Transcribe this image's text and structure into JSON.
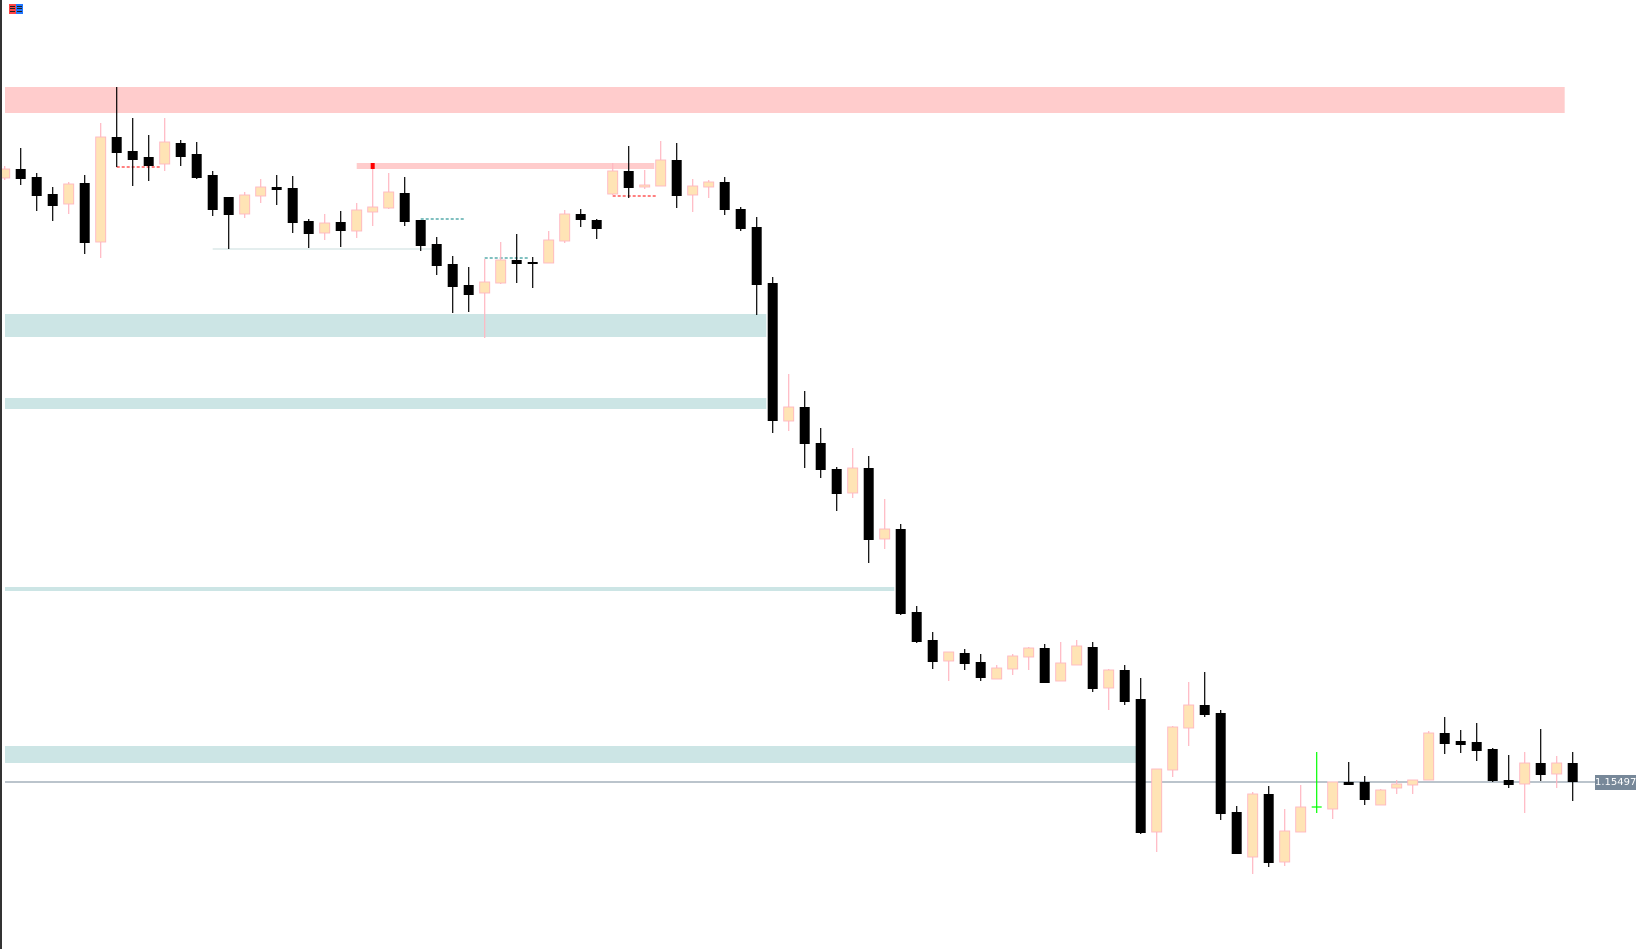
{
  "colors": {
    "bull_fill": "#FFE4B5",
    "bull_border": "#FFB6C1",
    "bear_fill": "#000000",
    "bear_wick": "#000000",
    "supply_zone": "#FFCCCC",
    "demand_zone": "#CCE5E5",
    "price_line": "#778899",
    "highlight": "#00FF00",
    "marker": "#FF0000",
    "dash_red": "#FF0000",
    "dash_teal": "#008080",
    "thin_line": "#C8DEDE",
    "icon_left": "#FF4444",
    "icon_right": "#2277FF"
  },
  "app_icon": "chart-window-icon",
  "chart_data": {
    "type": "candlestick",
    "ylim": [
      1.15163,
      1.17061
    ],
    "grid": false,
    "current_price": "1.15497",
    "candles": [
      [
        1.16705,
        1.16729,
        1.16701,
        1.16723
      ],
      [
        1.16723,
        1.16765,
        1.16691,
        1.16703
      ],
      [
        1.16707,
        1.16715,
        1.16639,
        1.16669
      ],
      [
        1.16673,
        1.16687,
        1.16619,
        1.16649
      ],
      [
        1.16653,
        1.16697,
        1.16633,
        1.16693
      ],
      [
        1.16695,
        1.16711,
        1.16553,
        1.16575
      ],
      [
        1.16577,
        1.16815,
        1.16545,
        1.16787
      ],
      [
        1.16787,
        1.16887,
        1.16727,
        1.16755
      ],
      [
        1.16759,
        1.16825,
        1.16689,
        1.16741
      ],
      [
        1.16747,
        1.16791,
        1.16699,
        1.16729
      ],
      [
        1.16733,
        1.16825,
        1.16719,
        1.16777
      ],
      [
        1.16775,
        1.16781,
        1.16729,
        1.16747
      ],
      [
        1.16753,
        1.16777,
        1.16703,
        1.16705
      ],
      [
        1.16711,
        1.16719,
        1.16629,
        1.16641
      ],
      [
        1.16667,
        1.16667,
        1.16563,
        1.16631
      ],
      [
        1.16633,
        1.16677,
        1.16625,
        1.16671
      ],
      [
        1.16669,
        1.16703,
        1.16655,
        1.16687
      ],
      [
        1.16687,
        1.16711,
        1.16651,
        1.16681
      ],
      [
        1.16685,
        1.16709,
        1.16595,
        1.16615
      ],
      [
        1.16619,
        1.16623,
        1.16565,
        1.16593
      ],
      [
        1.16595,
        1.16633,
        1.16581,
        1.16615
      ],
      [
        1.16617,
        1.16639,
        1.16567,
        1.16599
      ],
      [
        1.16599,
        1.16655,
        1.16585,
        1.16641
      ],
      [
        1.16637,
        1.16729,
        1.16609,
        1.16647
      ],
      [
        1.16645,
        1.16715,
        1.16643,
        1.16677
      ],
      [
        1.16675,
        1.16707,
        1.16609,
        1.16617
      ],
      [
        1.16621,
        1.16621,
        1.16559,
        1.16569
      ],
      [
        1.16573,
        1.16587,
        1.16511,
        1.16529
      ],
      [
        1.16533,
        1.16549,
        1.16435,
        1.16487
      ],
      [
        1.16491,
        1.16527,
        1.16437,
        1.16471
      ],
      [
        1.16475,
        1.16543,
        1.16385,
        1.16497
      ],
      [
        1.16495,
        1.16577,
        1.16493,
        1.16541
      ],
      [
        1.16541,
        1.16593,
        1.16495,
        1.16533
      ],
      [
        1.16537,
        1.16547,
        1.16485,
        1.16533
      ],
      [
        1.16535,
        1.16599,
        1.16535,
        1.16581
      ],
      [
        1.16579,
        1.16641,
        1.16575,
        1.16633
      ],
      [
        1.16633,
        1.16643,
        1.16607,
        1.16621
      ],
      [
        1.16621,
        1.16623,
        1.16583,
        1.16603
      ],
      [
        1.16673,
        1.16735,
        1.16671,
        1.16719
      ],
      [
        1.16719,
        1.16769,
        1.16665,
        1.16685
      ],
      [
        1.16687,
        1.16721,
        1.16683,
        1.16691
      ],
      [
        1.16689,
        1.16779,
        1.16689,
        1.16741
      ],
      [
        1.16741,
        1.16775,
        1.16645,
        1.16669
      ],
      [
        1.16671,
        1.16703,
        1.16637,
        1.16689
      ],
      [
        1.16687,
        1.16701,
        1.16665,
        1.16697
      ],
      [
        1.16697,
        1.16707,
        1.16631,
        1.16641
      ],
      [
        1.16643,
        1.16647,
        1.16599,
        1.16603
      ],
      [
        1.16607,
        1.16627,
        1.16431,
        1.16491
      ],
      [
        1.16495,
        1.16507,
        1.16195,
        1.16219
      ],
      [
        1.16219,
        1.16313,
        1.16199,
        1.16247
      ],
      [
        1.16247,
        1.16279,
        1.16125,
        1.16173
      ],
      [
        1.16175,
        1.16205,
        1.16105,
        1.16121
      ],
      [
        1.16123,
        1.16127,
        1.16039,
        1.16073
      ],
      [
        1.16075,
        1.16165,
        1.16065,
        1.16125
      ],
      [
        1.16125,
        1.16149,
        1.15935,
        1.15981
      ],
      [
        1.15983,
        1.16063,
        1.15963,
        1.16003
      ],
      [
        1.16003,
        1.16013,
        1.15831,
        1.15833
      ],
      [
        1.15837,
        1.15849,
        1.15775,
        1.15777
      ],
      [
        1.15781,
        1.15797,
        1.15723,
        1.15737
      ],
      [
        1.15739,
        1.15757,
        1.15699,
        1.15757
      ],
      [
        1.15755,
        1.15763,
        1.15721,
        1.15733
      ],
      [
        1.15737,
        1.15753,
        1.15699,
        1.15705
      ],
      [
        1.15703,
        1.15731,
        1.15703,
        1.15725
      ],
      [
        1.15723,
        1.15753,
        1.15711,
        1.15749
      ],
      [
        1.15747,
        1.15767,
        1.15721,
        1.15765
      ],
      [
        1.15765,
        1.15773,
        1.15695,
        1.15695
      ],
      [
        1.15699,
        1.15777,
        1.15699,
        1.15735
      ],
      [
        1.15731,
        1.15781,
        1.15731,
        1.15769
      ],
      [
        1.15767,
        1.15777,
        1.15677,
        1.15683
      ],
      [
        1.15685,
        1.15723,
        1.15641,
        1.15721
      ],
      [
        1.15721,
        1.15731,
        1.15651,
        1.15657
      ],
      [
        1.15663,
        1.15705,
        1.15393,
        1.15395
      ],
      [
        1.15397,
        1.15523,
        1.15357,
        1.15523
      ],
      [
        1.15521,
        1.15609,
        1.15507,
        1.15607
      ],
      [
        1.15605,
        1.15697,
        1.15569,
        1.15651
      ],
      [
        1.15651,
        1.15717,
        1.15627,
        1.15631
      ],
      [
        1.15635,
        1.15641,
        1.15421,
        1.15433
      ],
      [
        1.15437,
        1.15449,
        1.15353,
        1.15353
      ],
      [
        1.15347,
        1.15477,
        1.15313,
        1.15473
      ],
      [
        1.15473,
        1.15489,
        1.15327,
        1.15335
      ],
      [
        1.15337,
        1.15443,
        1.15329,
        1.15399
      ],
      [
        1.15397,
        1.15491,
        1.15397,
        1.15447
      ],
      [
        1.15447,
        1.15557,
        1.15435,
        1.15447
      ],
      [
        1.15443,
        1.15497,
        1.15423,
        1.15497
      ],
      [
        1.15497,
        1.15537,
        1.15491,
        1.15491
      ],
      [
        1.15497,
        1.15509,
        1.15451,
        1.15461
      ],
      [
        1.15451,
        1.15483,
        1.15451,
        1.15481
      ],
      [
        1.15485,
        1.15501,
        1.15473,
        1.15493
      ],
      [
        1.15491,
        1.15501,
        1.15473,
        1.15501
      ],
      [
        1.15501,
        1.15599,
        1.15501,
        1.15595
      ],
      [
        1.15595,
        1.15627,
        1.15553,
        1.15573
      ],
      [
        1.15579,
        1.15601,
        1.15555,
        1.15571
      ],
      [
        1.15577,
        1.15615,
        1.15539,
        1.15559
      ],
      [
        1.15563,
        1.15565,
        1.15497,
        1.15499
      ],
      [
        1.15501,
        1.15551,
        1.15485,
        1.15491
      ],
      [
        1.15493,
        1.15557,
        1.15435,
        1.15535
      ],
      [
        1.15535,
        1.15603,
        1.15499,
        1.15511
      ],
      [
        1.15513,
        1.15549,
        1.15485,
        1.15535
      ],
      [
        1.15535,
        1.15557,
        1.15459,
        1.15497
      ]
    ],
    "highlighted_candles": [
      82
    ],
    "zones": [
      {
        "kind": "supply",
        "from_index": 0,
        "to_index": 97.5,
        "top": 1.16887,
        "bottom": 1.16835
      },
      {
        "kind": "supply",
        "from_index": 22,
        "to_index": 40.6,
        "top": 1.16735,
        "bottom": 1.16723
      },
      {
        "kind": "demand",
        "from_index": 0,
        "to_index": 47.6,
        "top": 1.16433,
        "bottom": 1.16387
      },
      {
        "kind": "demand",
        "from_index": 0,
        "to_index": 47.6,
        "top": 1.16265,
        "bottom": 1.16243
      },
      {
        "kind": "demand",
        "from_index": 0,
        "to_index": 55.6,
        "top": 1.15887,
        "bottom": 1.15879
      },
      {
        "kind": "demand",
        "from_index": 0,
        "to_index": 70.8,
        "top": 1.15569,
        "bottom": 1.15535
      }
    ],
    "lines": [
      {
        "style": "thin",
        "from_index": 13,
        "to_index": 26.7,
        "price": 1.16563
      },
      {
        "style": "dash_red",
        "from_index": 7,
        "to_index": 9.8,
        "price": 1.16727
      },
      {
        "style": "dash_red",
        "from_index": 38,
        "to_index": 40.8,
        "price": 1.16669
      },
      {
        "style": "dash_teal",
        "from_index": 26,
        "to_index": 28.8,
        "price": 1.16623
      },
      {
        "style": "dash_teal",
        "from_index": 30,
        "to_index": 32.8,
        "price": 1.16545
      }
    ],
    "markers": [
      {
        "index": 23,
        "price": 1.16729
      }
    ]
  }
}
